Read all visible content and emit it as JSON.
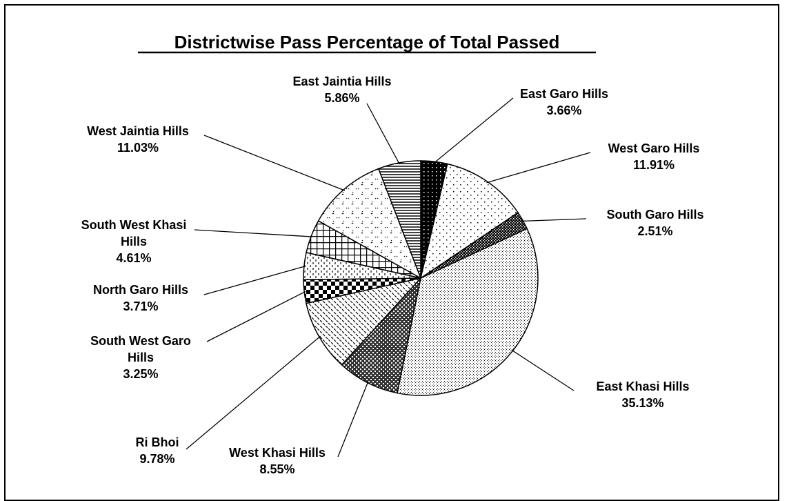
{
  "chart_data": {
    "type": "pie",
    "title": "Districtwise Pass Percentage of Total Passed",
    "slices": [
      {
        "label": "East Garo Hills",
        "value": 3.66,
        "value_label": "3.66%"
      },
      {
        "label": "West Garo Hills",
        "value": 11.91,
        "value_label": "11.91%"
      },
      {
        "label": "South Garo Hills",
        "value": 2.51,
        "value_label": "2.51%"
      },
      {
        "label": "East Khasi Hills",
        "value": 35.13,
        "value_label": "35.13%"
      },
      {
        "label": "West Khasi Hills",
        "value": 8.55,
        "value_label": "8.55%"
      },
      {
        "label": "Ri Bhoi",
        "value": 9.78,
        "value_label": "9.78%"
      },
      {
        "label": "South West Garo Hills",
        "value": 3.25,
        "value_label": "3.25%"
      },
      {
        "label": "North Garo Hills",
        "value": 3.71,
        "value_label": "3.71%"
      },
      {
        "label": "South West Khasi Hills",
        "value": 4.61,
        "value_label": "4.61%"
      },
      {
        "label": "West Jaintia Hills",
        "value": 11.03,
        "value_label": "11.03%"
      },
      {
        "label": "East Jaintia Hills",
        "value": 5.86,
        "value_label": "5.86%"
      }
    ],
    "legend": "none",
    "data_labels": "outside-with-leader-lines",
    "colors": {
      "fill": "#ffffff",
      "stroke": "#000000"
    }
  }
}
